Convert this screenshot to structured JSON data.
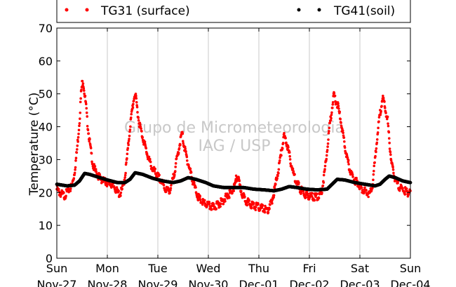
{
  "chart_data": {
    "type": "scatter",
    "ylabel": "Temperature (°C)",
    "ylim": [
      0,
      70
    ],
    "yticks": [
      "0",
      "10",
      "20",
      "30",
      "40",
      "50",
      "60",
      "70"
    ],
    "xlim": [
      0,
      7
    ],
    "xticks": [
      {
        "day": "Sun",
        "date": "Nov-27"
      },
      {
        "day": "Mon",
        "date": "Nov-28"
      },
      {
        "day": "Tue",
        "date": "Nov-29"
      },
      {
        "day": "Wed",
        "date": "Nov-30"
      },
      {
        "day": "Thu",
        "date": "Dec-01"
      },
      {
        "day": "Fri",
        "date": "Dec-02"
      },
      {
        "day": "Sat",
        "date": "Dec-03"
      },
      {
        "day": "Sun",
        "date": "Dec-04"
      }
    ],
    "grid": "vertical",
    "legend_position": "top",
    "watermark": [
      "Grupo de Micrometeorologia",
      "IAG / USP"
    ],
    "series": [
      {
        "name": "TG31 (surface)",
        "color": "#ff0000",
        "points": [
          [
            0.0,
            21.0
          ],
          [
            0.05,
            20.0
          ],
          [
            0.1,
            19.5
          ],
          [
            0.15,
            19.0
          ],
          [
            0.2,
            20.0
          ],
          [
            0.25,
            21.0
          ],
          [
            0.3,
            22.0
          ],
          [
            0.35,
            26.0
          ],
          [
            0.4,
            33.0
          ],
          [
            0.45,
            42.0
          ],
          [
            0.48,
            50.0
          ],
          [
            0.5,
            53.0
          ],
          [
            0.52,
            54.0
          ],
          [
            0.55,
            50.0
          ],
          [
            0.58,
            46.0
          ],
          [
            0.6,
            42.0
          ],
          [
            0.63,
            38.0
          ],
          [
            0.67,
            33.0
          ],
          [
            0.72,
            28.0
          ],
          [
            0.78,
            26.0
          ],
          [
            0.85,
            24.5
          ],
          [
            0.92,
            23.5
          ],
          [
            1.0,
            23.0
          ],
          [
            1.08,
            22.5
          ],
          [
            1.15,
            21.5
          ],
          [
            1.2,
            20.0
          ],
          [
            1.25,
            19.5
          ],
          [
            1.3,
            21.0
          ],
          [
            1.35,
            25.0
          ],
          [
            1.4,
            32.0
          ],
          [
            1.45,
            40.0
          ],
          [
            1.5,
            46.0
          ],
          [
            1.53,
            49.0
          ],
          [
            1.55,
            50.0
          ],
          [
            1.58,
            47.0
          ],
          [
            1.62,
            42.0
          ],
          [
            1.68,
            38.0
          ],
          [
            1.75,
            34.0
          ],
          [
            1.82,
            30.0
          ],
          [
            1.9,
            27.0
          ],
          [
            2.0,
            25.0
          ],
          [
            2.1,
            22.5
          ],
          [
            2.15,
            21.0
          ],
          [
            2.2,
            20.5
          ],
          [
            2.25,
            21.0
          ],
          [
            2.3,
            24.0
          ],
          [
            2.35,
            28.0
          ],
          [
            2.4,
            32.0
          ],
          [
            2.45,
            36.0
          ],
          [
            2.48,
            38.0
          ],
          [
            2.52,
            34.0
          ],
          [
            2.58,
            30.0
          ],
          [
            2.65,
            26.0
          ],
          [
            2.72,
            22.0
          ],
          [
            2.8,
            18.5
          ],
          [
            2.88,
            17.0
          ],
          [
            2.95,
            16.5
          ],
          [
            3.0,
            16.0
          ],
          [
            3.1,
            15.5
          ],
          [
            3.15,
            16.0
          ],
          [
            3.25,
            17.0
          ],
          [
            3.35,
            18.5
          ],
          [
            3.45,
            20.0
          ],
          [
            3.52,
            22.0
          ],
          [
            3.55,
            24.0
          ],
          [
            3.58,
            25.0
          ],
          [
            3.62,
            22.0
          ],
          [
            3.68,
            19.0
          ],
          [
            3.75,
            17.5
          ],
          [
            3.82,
            16.5
          ],
          [
            3.9,
            16.0
          ],
          [
            4.0,
            15.5
          ],
          [
            4.1,
            15.0
          ],
          [
            4.18,
            14.5
          ],
          [
            4.25,
            17.0
          ],
          [
            4.3,
            20.0
          ],
          [
            4.35,
            24.0
          ],
          [
            4.4,
            28.0
          ],
          [
            4.45,
            33.0
          ],
          [
            4.5,
            37.0
          ],
          [
            4.53,
            36.0
          ],
          [
            4.57,
            34.0
          ],
          [
            4.62,
            30.0
          ],
          [
            4.68,
            26.0
          ],
          [
            4.75,
            23.0
          ],
          [
            4.82,
            21.0
          ],
          [
            4.9,
            19.5
          ],
          [
            5.0,
            19.0
          ],
          [
            5.1,
            18.5
          ],
          [
            5.2,
            19.0
          ],
          [
            5.25,
            21.0
          ],
          [
            5.3,
            26.0
          ],
          [
            5.35,
            33.0
          ],
          [
            5.4,
            40.0
          ],
          [
            5.45,
            46.0
          ],
          [
            5.48,
            49.5
          ],
          [
            5.52,
            48.0
          ],
          [
            5.57,
            46.0
          ],
          [
            5.62,
            42.0
          ],
          [
            5.68,
            36.0
          ],
          [
            5.75,
            30.0
          ],
          [
            5.82,
            26.0
          ],
          [
            5.88,
            24.0
          ],
          [
            5.95,
            23.0
          ],
          [
            6.05,
            21.0
          ],
          [
            6.15,
            20.0
          ],
          [
            6.2,
            19.5
          ],
          [
            6.25,
            22.0
          ],
          [
            6.3,
            30.0
          ],
          [
            6.35,
            38.0
          ],
          [
            6.4,
            44.0
          ],
          [
            6.45,
            49.0
          ],
          [
            6.48,
            47.0
          ],
          [
            6.52,
            44.0
          ],
          [
            6.55,
            42.0
          ],
          [
            6.58,
            36.0
          ],
          [
            6.62,
            30.0
          ],
          [
            6.66,
            26.0
          ],
          [
            6.72,
            23.0
          ],
          [
            6.8,
            21.5
          ],
          [
            6.88,
            20.5
          ],
          [
            6.95,
            20.0
          ],
          [
            7.0,
            20.5
          ]
        ]
      },
      {
        "name": "TG41(soil)",
        "color": "#000000",
        "points": [
          [
            0.0,
            22.5
          ],
          [
            0.2,
            22.0
          ],
          [
            0.35,
            22.2
          ],
          [
            0.45,
            23.5
          ],
          [
            0.55,
            25.8
          ],
          [
            0.65,
            25.5
          ],
          [
            0.85,
            24.5
          ],
          [
            1.0,
            23.8
          ],
          [
            1.2,
            23.0
          ],
          [
            1.35,
            23.0
          ],
          [
            1.45,
            24.0
          ],
          [
            1.55,
            26.0
          ],
          [
            1.7,
            25.5
          ],
          [
            1.9,
            24.3
          ],
          [
            2.1,
            23.5
          ],
          [
            2.3,
            23.0
          ],
          [
            2.45,
            23.5
          ],
          [
            2.6,
            24.5
          ],
          [
            2.75,
            24.0
          ],
          [
            2.95,
            23.0
          ],
          [
            3.1,
            22.0
          ],
          [
            3.3,
            21.5
          ],
          [
            3.5,
            21.5
          ],
          [
            3.7,
            21.5
          ],
          [
            3.9,
            21.0
          ],
          [
            4.1,
            20.8
          ],
          [
            4.3,
            20.5
          ],
          [
            4.45,
            21.0
          ],
          [
            4.6,
            21.8
          ],
          [
            4.75,
            21.5
          ],
          [
            4.95,
            21.0
          ],
          [
            5.15,
            20.8
          ],
          [
            5.35,
            21.0
          ],
          [
            5.45,
            22.5
          ],
          [
            5.55,
            24.0
          ],
          [
            5.7,
            23.8
          ],
          [
            5.9,
            23.0
          ],
          [
            6.1,
            22.5
          ],
          [
            6.3,
            22.0
          ],
          [
            6.4,
            22.5
          ],
          [
            6.5,
            24.0
          ],
          [
            6.58,
            25.0
          ],
          [
            6.7,
            24.5
          ],
          [
            6.85,
            23.5
          ],
          [
            7.0,
            23.0
          ]
        ]
      }
    ]
  }
}
